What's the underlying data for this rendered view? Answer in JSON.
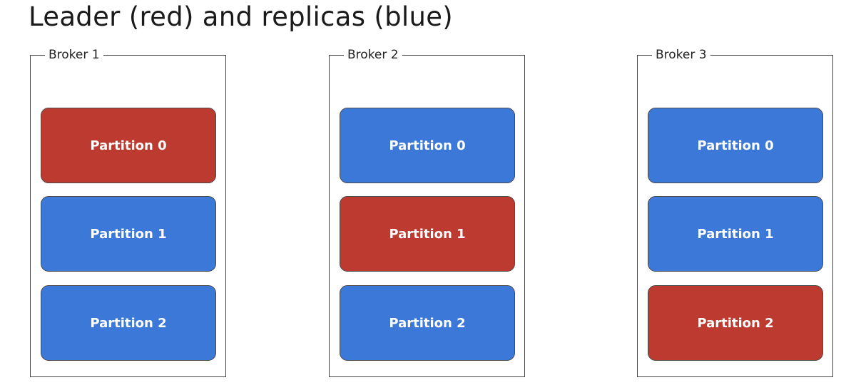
{
  "title": "Leader (red) and replicas (blue)",
  "colors": {
    "leader": "#bc3a30",
    "replica": "#3c78d8"
  },
  "brokers": [
    {
      "label": "Broker 1",
      "partitions": [
        {
          "label": "Partition 0",
          "role": "leader"
        },
        {
          "label": "Partition 1",
          "role": "replica"
        },
        {
          "label": "Partition 2",
          "role": "replica"
        }
      ]
    },
    {
      "label": "Broker 2",
      "partitions": [
        {
          "label": "Partition 0",
          "role": "replica"
        },
        {
          "label": "Partition 1",
          "role": "leader"
        },
        {
          "label": "Partition 2",
          "role": "replica"
        }
      ]
    },
    {
      "label": "Broker 3",
      "partitions": [
        {
          "label": "Partition 0",
          "role": "replica"
        },
        {
          "label": "Partition 1",
          "role": "replica"
        },
        {
          "label": "Partition 2",
          "role": "leader"
        }
      ]
    }
  ]
}
